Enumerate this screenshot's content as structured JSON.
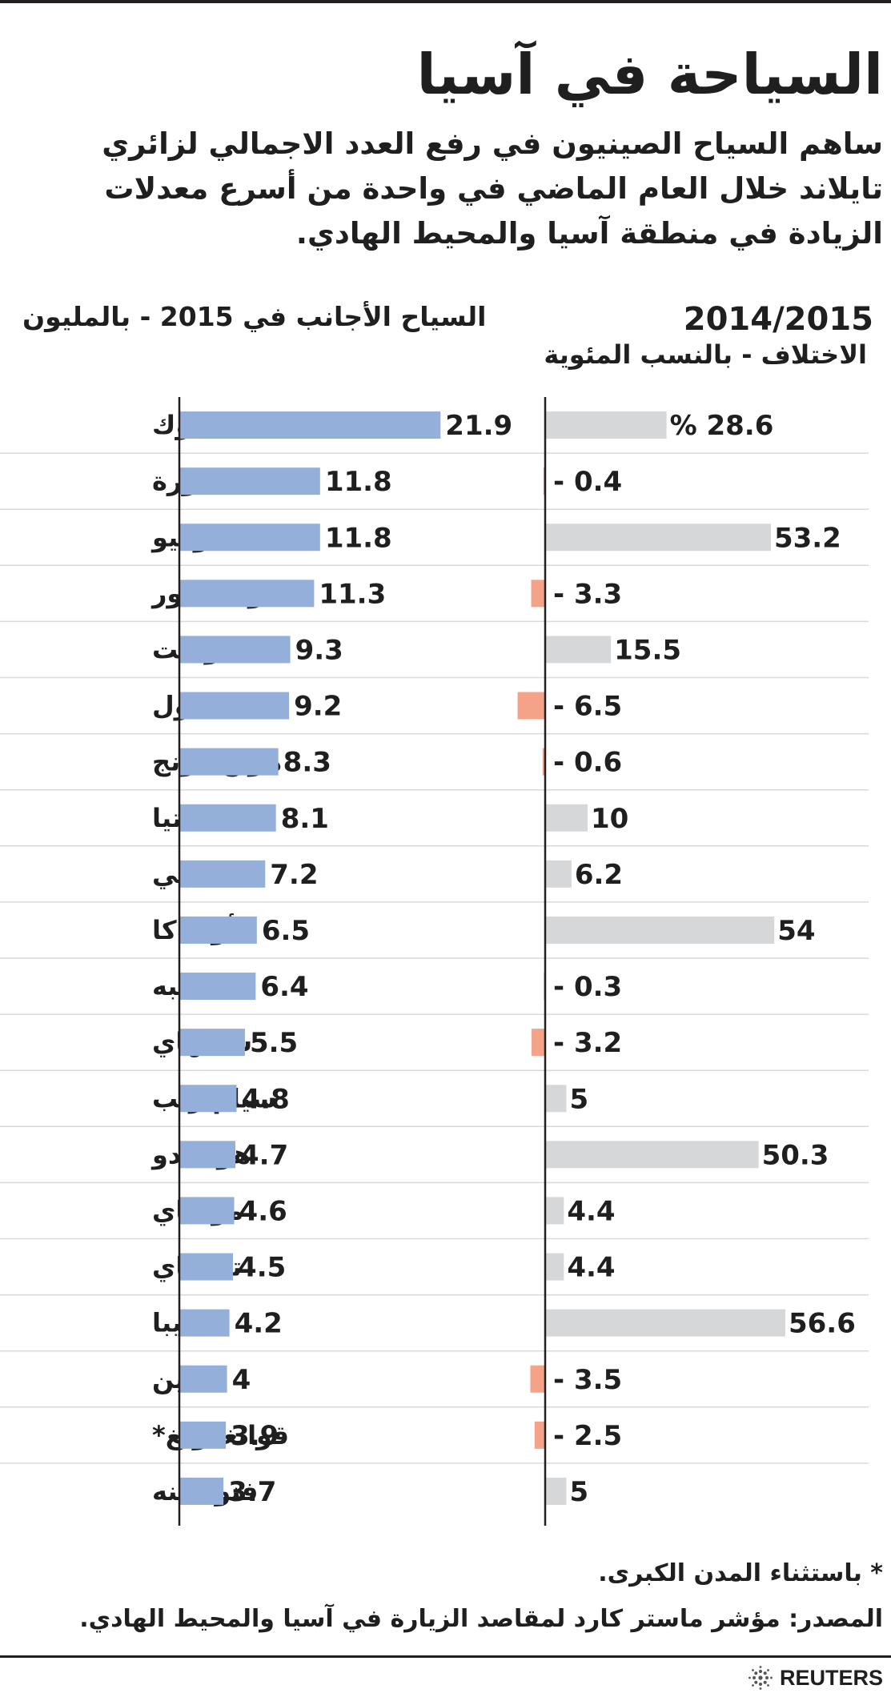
{
  "title": "السياحة في آسيا",
  "subtitle": "ساهم السياح الصينيون في رفع العدد الاجمالي لزائري تايلاند خلال العام الماضي في واحدة من أسرع معدلات الزيادة في منطقة آسيا والمحيط الهادي.",
  "left_header": "السياح الأجانب في 2015  - بالمليون",
  "right_header_year": "2014/2015",
  "right_header_sub": "الاختلاف - بالنسب المئوية",
  "footnote": "* باستثناء المدن الكبرى.",
  "source": "المصدر: مؤشر ماستر كارد لمقاصد الزيارة في آسيا والمحيط الهادي.",
  "brand": "REUTERS",
  "colors": {
    "visitors_bar": "#94afd9",
    "change_positive": "#d6d7d9",
    "change_negative": "#f4a388",
    "axis": "#231f20"
  },
  "chart_data": [
    {
      "type": "bar",
      "orientation": "horizontal",
      "title": "السياح الأجانب في 2015  - بالمليون",
      "categories": [
        "بانكوك",
        "سنغافورة",
        "طوكيو",
        "كوالالمبور",
        "بوكيت",
        "سول",
        "هونج كونج",
        "باتيا",
        "بالي",
        "أوساكا",
        "تايبه",
        "شنغهاي",
        "سيام ريب",
        "هوكايدو",
        "مومباي",
        "تشيناي",
        "تشيبا",
        "بكين",
        "قوانغدونغ*",
        "فنومبينه"
      ],
      "values": [
        21.9,
        11.8,
        11.8,
        11.3,
        9.3,
        9.2,
        8.3,
        8.1,
        7.2,
        6.5,
        6.4,
        5.5,
        4.8,
        4.7,
        4.6,
        4.5,
        4.2,
        4,
        3.9,
        3.7
      ],
      "labels": [
        "21.9",
        "11.8",
        "11.8",
        "11.3",
        "9.3",
        "9.2",
        "8.3",
        "8.1",
        "7.2",
        "6.5",
        "6.4",
        "5.5",
        "4.8",
        "4.7",
        "4.6",
        "4.5",
        "4.2",
        "4",
        "3.9",
        "3.7"
      ],
      "xlim": [
        0,
        24
      ]
    },
    {
      "type": "bar",
      "orientation": "horizontal",
      "title": "2014/2015",
      "subtitle": "الاختلاف - بالنسب المئوية",
      "categories": [
        "بانكوك",
        "سنغافورة",
        "طوكيو",
        "كوالالمبور",
        "بوكيت",
        "سول",
        "هونج كونج",
        "باتيا",
        "بالي",
        "أوساكا",
        "تايبه",
        "شنغهاي",
        "سيام ريب",
        "هوكايدو",
        "مومباي",
        "تشيناي",
        "تشيبا",
        "بكين",
        "قوانغدونغ*",
        "فنومبينه"
      ],
      "values": [
        28.6,
        -0.4,
        53.2,
        -3.3,
        15.5,
        -6.5,
        -0.6,
        10,
        6.2,
        54,
        -0.3,
        -3.2,
        5,
        50.3,
        4.4,
        4.4,
        56.6,
        -3.5,
        -2.5,
        5
      ],
      "labels": [
        "% 28.6",
        "- 0.4",
        "53.2",
        "- 3.3",
        "15.5",
        "- 6.5",
        "- 0.6",
        "10",
        "6.2",
        "54",
        "- 0.3",
        "- 3.2",
        "5",
        "50.3",
        "4.4",
        "4.4",
        "56.6",
        "- 3.5",
        "- 2.5",
        "5"
      ],
      "xlim": [
        -10,
        65
      ]
    }
  ]
}
